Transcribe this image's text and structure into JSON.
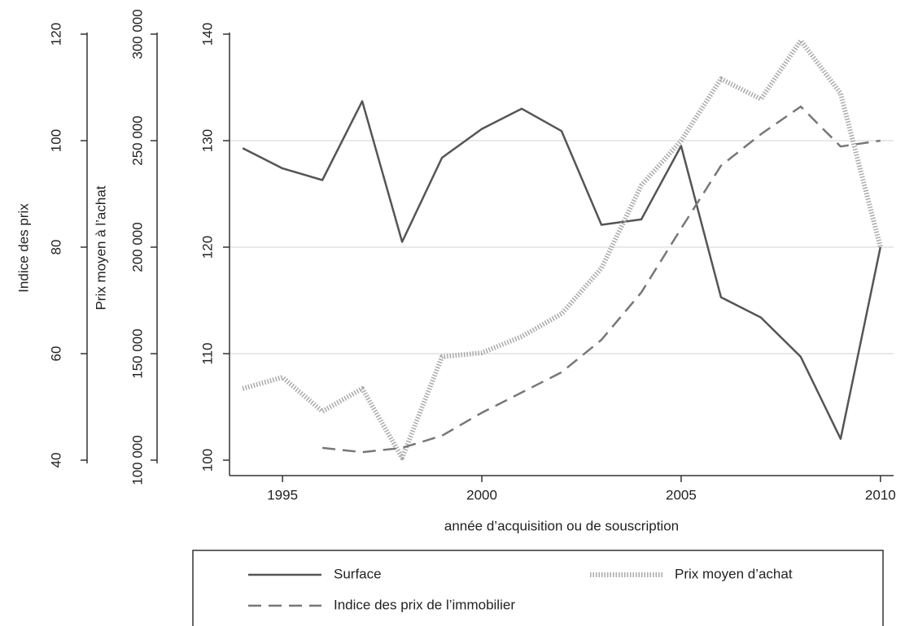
{
  "chart_data": {
    "type": "line",
    "x_label": "année d’acquisition ou de souscription",
    "x": [
      1994,
      1995,
      1996,
      1997,
      1998,
      1999,
      2000,
      2001,
      2002,
      2003,
      2004,
      2005,
      2006,
      2007,
      2008,
      2009,
      2010
    ],
    "xlim": [
      1993.67,
      2010.33
    ],
    "xticks": [
      1995,
      2000,
      2005,
      2010
    ],
    "ylim": [
      100,
      140
    ],
    "yticks": [
      100,
      110,
      120,
      130,
      140
    ],
    "y2_label": "Prix moyen à l’achat",
    "y2lim": [
      100000,
      300000
    ],
    "y2ticks": [
      {
        "value": 100000,
        "label": "100 000"
      },
      {
        "value": 150000,
        "label": "150 000"
      },
      {
        "value": 200000,
        "label": "200 000"
      },
      {
        "value": 250000,
        "label": "250 000"
      },
      {
        "value": 300000,
        "label": "300 000"
      }
    ],
    "y3_label": "Indice des prix",
    "y3lim": [
      40,
      120
    ],
    "y3ticks": [
      40,
      60,
      80,
      100,
      120
    ],
    "grid": true,
    "legend": "bottom",
    "series": [
      {
        "name": "Surface",
        "color": "#555555",
        "style": "solid",
        "axis": "y",
        "values": [
          129.3,
          127.4,
          126.3,
          133.7,
          120.5,
          128.4,
          131.1,
          133.0,
          130.9,
          122.1,
          122.6,
          129.5,
          115.3,
          113.4,
          109.7,
          102.0,
          120.0
        ]
      },
      {
        "name": "Prix moyen d’achat",
        "color": "#aaaaaa",
        "style": "dotted",
        "axis": "y2",
        "values": [
          133600,
          138900,
          122900,
          133600,
          101100,
          148500,
          150400,
          158000,
          168700,
          190100,
          229000,
          250000,
          279000,
          269500,
          297000,
          272100,
          200000
        ]
      },
      {
        "name": "Indice des prix de l’immobilier",
        "color": "#777777",
        "style": "dashed",
        "axis": "y3",
        "values": [
          null,
          null,
          42.3,
          41.5,
          42.3,
          44.6,
          48.9,
          52.7,
          56.5,
          62.6,
          71.5,
          83.5,
          95.3,
          101.2,
          106.4,
          98.9,
          100.0
        ]
      }
    ]
  }
}
